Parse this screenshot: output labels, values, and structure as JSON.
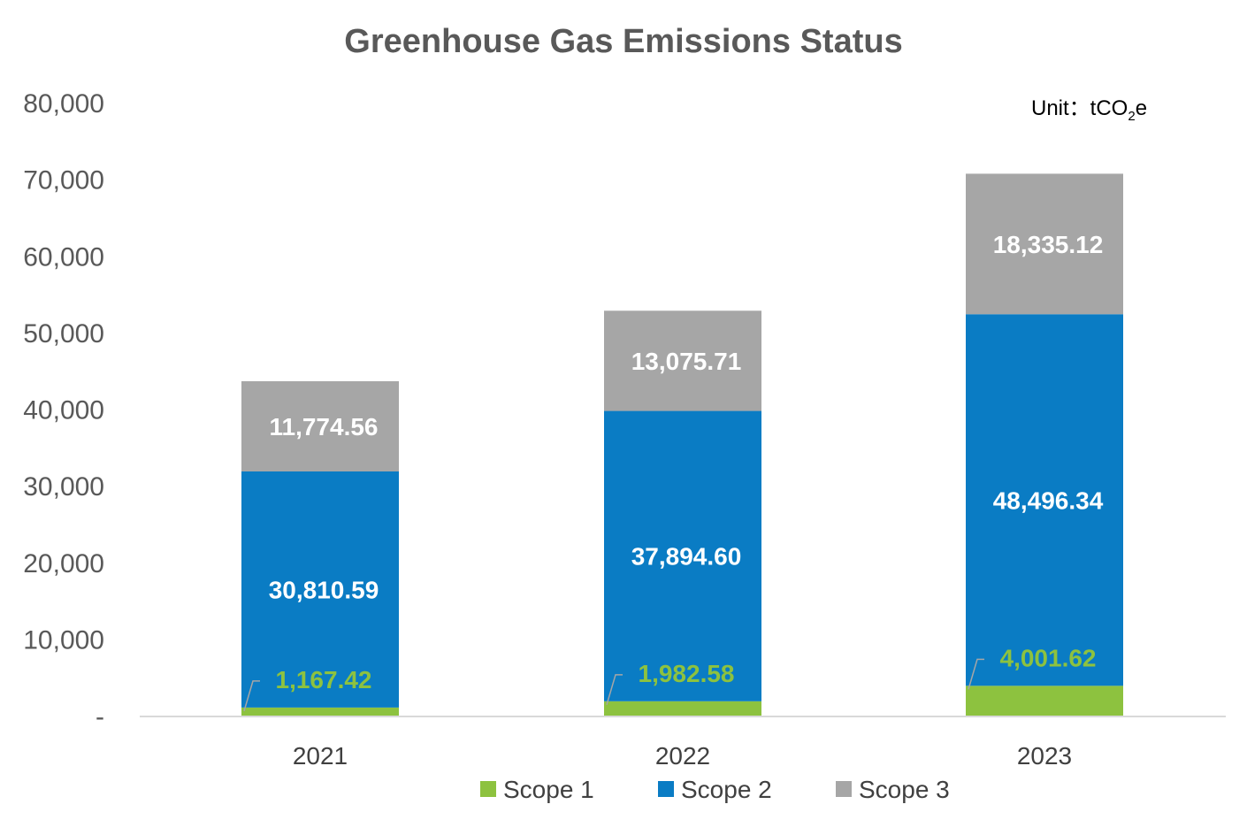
{
  "chart_data": {
    "type": "bar",
    "stacked": true,
    "title": "Greenhouse Gas Emissions Status",
    "unit_label": {
      "prefix": "Unit：tCO",
      "subscript": "2",
      "suffix": "e"
    },
    "categories": [
      "2021",
      "2022",
      "2023"
    ],
    "series": [
      {
        "name": "Scope 1",
        "color": "#8dc23f",
        "values": [
          1167.42,
          1982.58,
          4001.62
        ],
        "labels": [
          "1,167.42",
          "1,982.58",
          "4,001.62"
        ]
      },
      {
        "name": "Scope 2",
        "color": "#0a7cc4",
        "values": [
          30810.59,
          37894.6,
          48496.34
        ],
        "labels": [
          "30,810.59",
          "37,894.60",
          "48,496.34"
        ]
      },
      {
        "name": "Scope 3",
        "color": "#a6a6a6",
        "values": [
          11774.56,
          13075.71,
          18335.12
        ],
        "labels": [
          "11,774.56",
          "13,075.71",
          "18,335.12"
        ]
      }
    ],
    "ylim": [
      0,
      80000
    ],
    "yticks": [
      "-",
      "10,000",
      "20,000",
      "30,000",
      "40,000",
      "50,000",
      "60,000",
      "70,000",
      "80,000"
    ],
    "ytick_values": [
      0,
      10000,
      20000,
      30000,
      40000,
      50000,
      60000,
      70000,
      80000
    ],
    "grid": false,
    "legend_position": "bottom",
    "xlabel": "",
    "ylabel": ""
  }
}
